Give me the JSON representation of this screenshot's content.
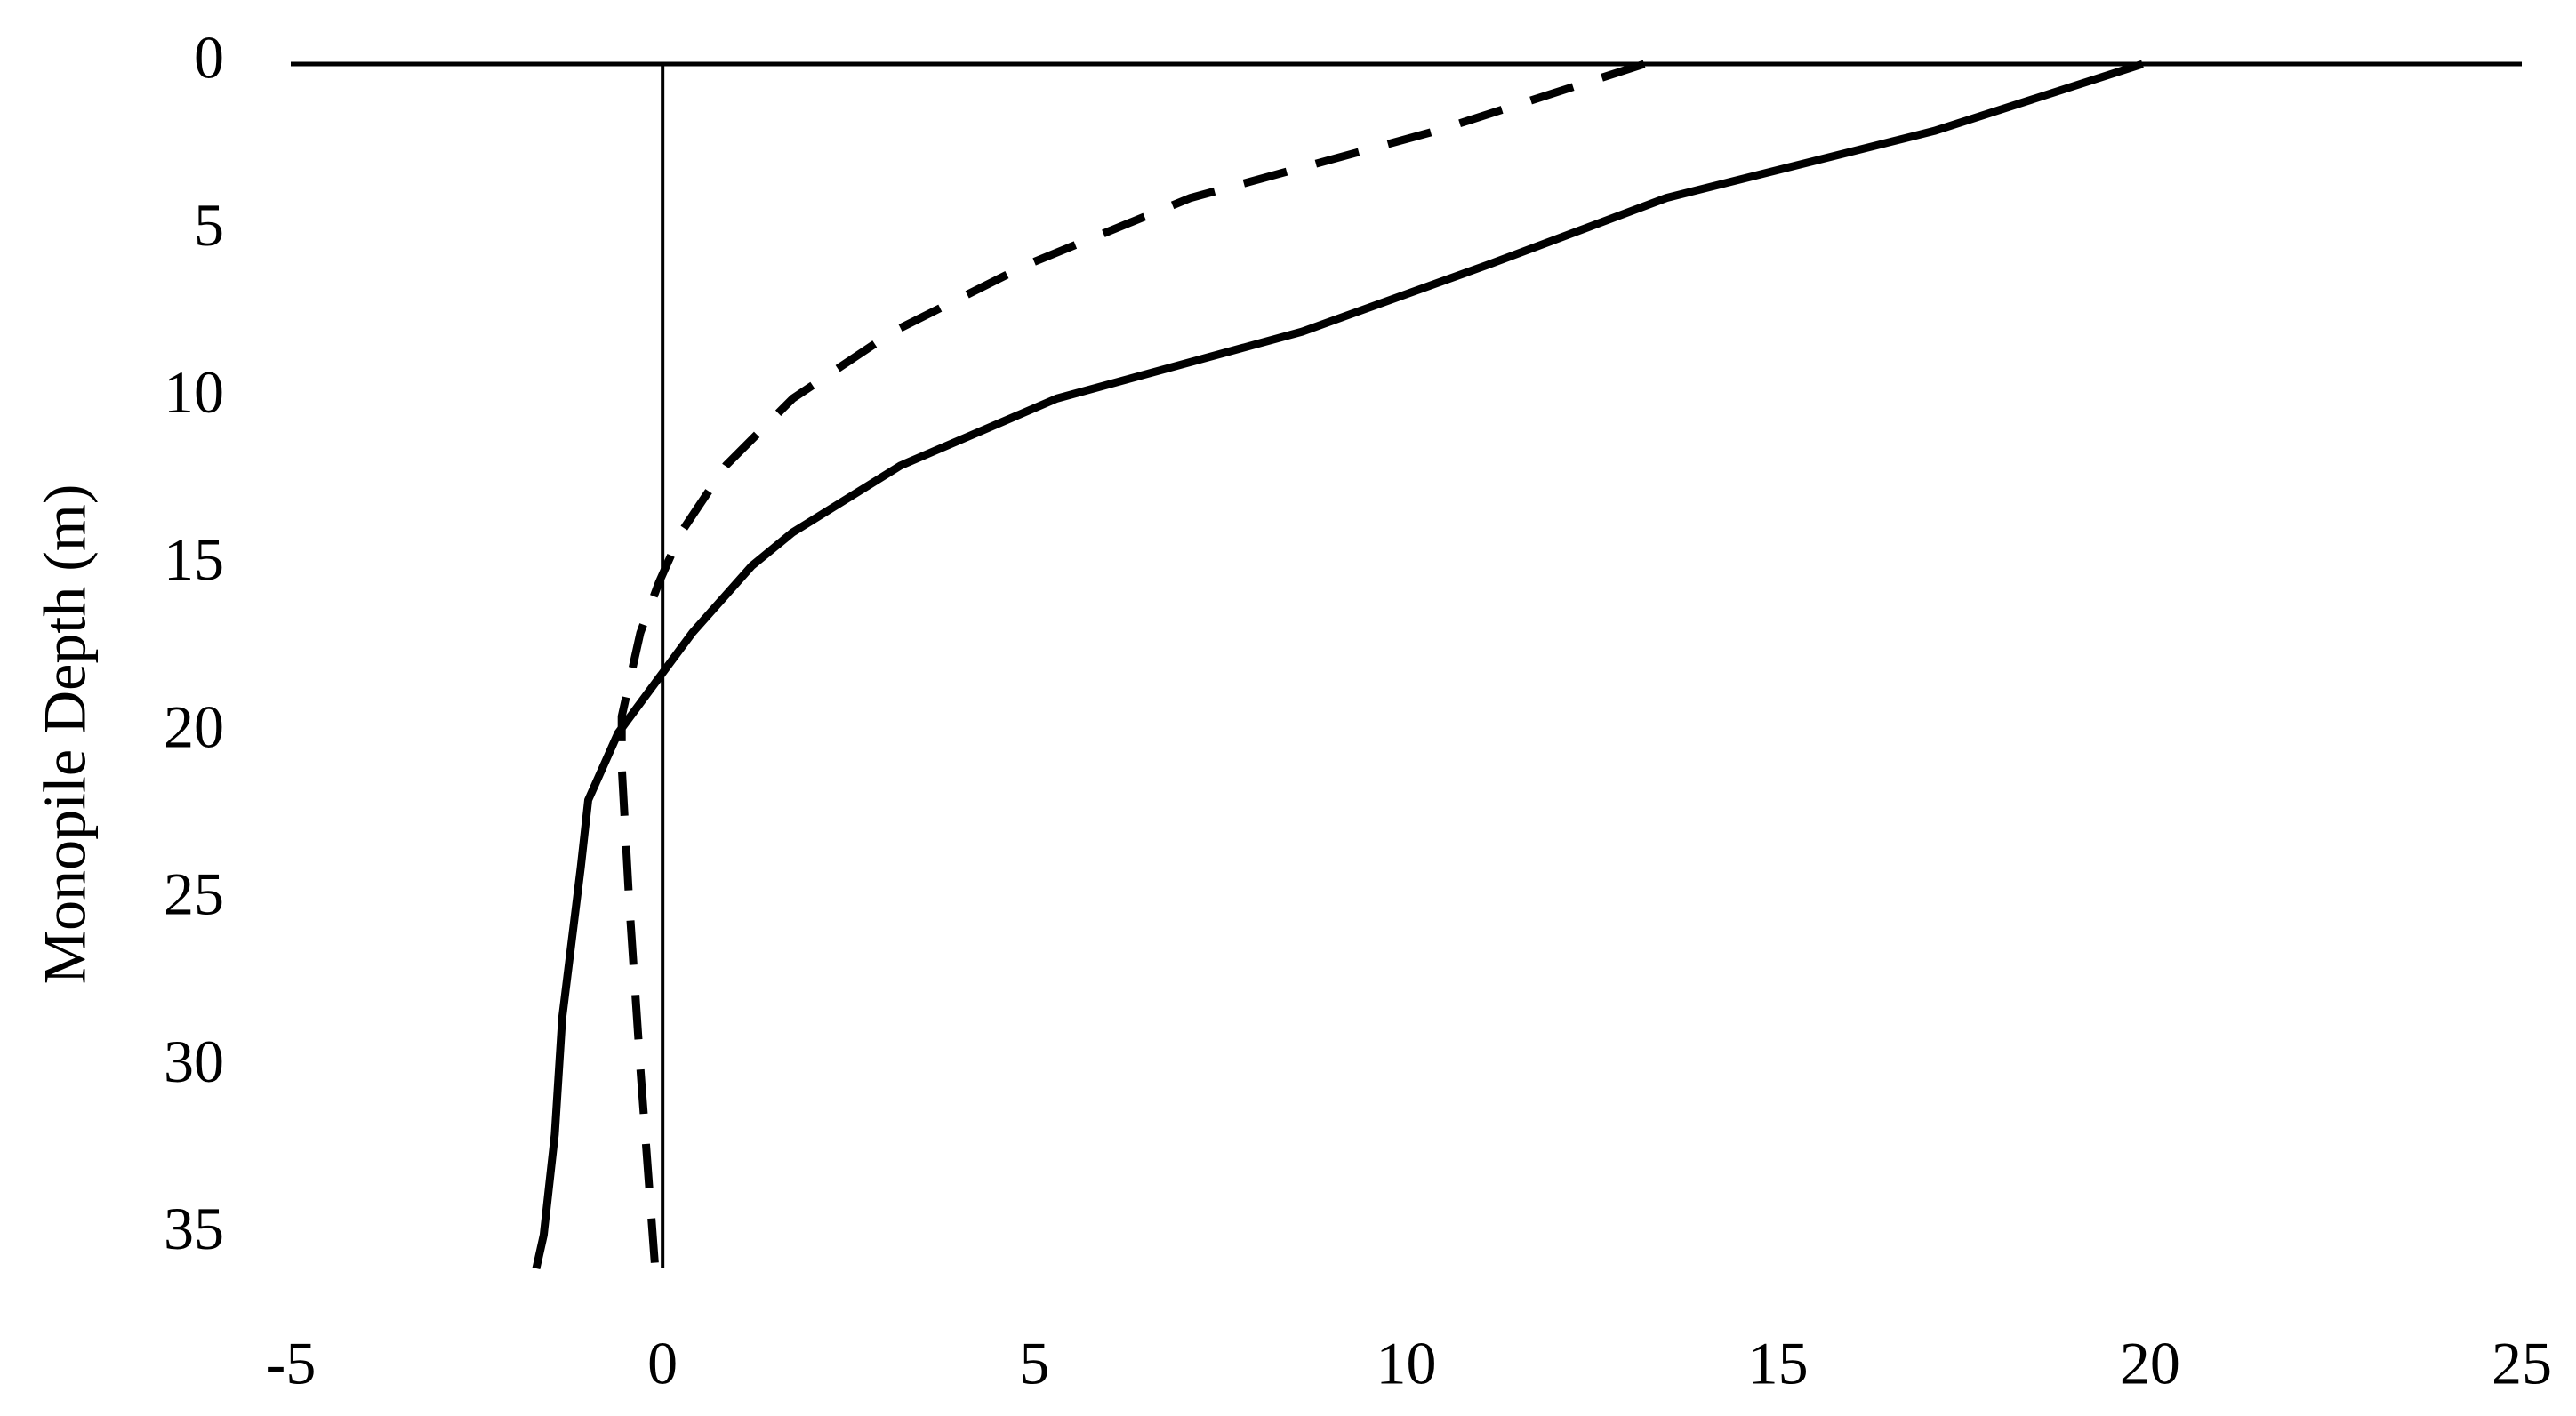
{
  "chart_data": {
    "type": "line",
    "ylabel": "Monopile Depth (m)",
    "xlim": [
      -5,
      25
    ],
    "xticks": [
      -5,
      0,
      5,
      10,
      15,
      20,
      25
    ],
    "ylim": [
      0,
      36
    ],
    "yticks": [
      0,
      5,
      10,
      15,
      20,
      25,
      30,
      35
    ],
    "y_inverted": true,
    "grid": false,
    "series": [
      {
        "color": "#000000",
        "dashed": false,
        "x": [
          19.9,
          17.1,
          13.5,
          11.1,
          8.6,
          5.3,
          3.2,
          1.75,
          1.2,
          0.4,
          0,
          -0.6,
          -1.0,
          -1.1,
          -1.35,
          -1.45,
          -1.6,
          -1.7
        ],
        "y": [
          0,
          2,
          4,
          6,
          8,
          10,
          12,
          14,
          15,
          17,
          18.2,
          20,
          22,
          24,
          28.5,
          32,
          35,
          36
        ]
      },
      {
        "color": "#000000",
        "dashed": true,
        "x": [
          13.2,
          10.4,
          7.1,
          4.9,
          3.1,
          1.75,
          0.85,
          0.25,
          -0.05,
          -0.3,
          -0.55,
          -0.55,
          -0.45,
          -0.3,
          -0.1
        ],
        "y": [
          0,
          2,
          4,
          6,
          8,
          10,
          12,
          14,
          15.5,
          17,
          19.5,
          21,
          25,
          30,
          36
        ]
      }
    ]
  }
}
